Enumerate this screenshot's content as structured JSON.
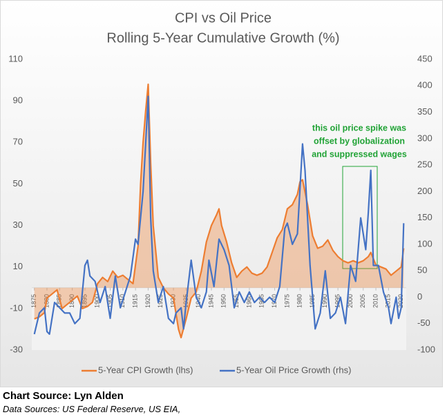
{
  "chart_data": {
    "type": "line",
    "title": "CPI vs Oil Price",
    "subtitle": "Rolling 5-Year Cumulative Growth (%)",
    "annotation": [
      "this oil price spike was",
      "offset by globalization",
      "and suppressed wages"
    ],
    "xlim": [
      1874,
      2022
    ],
    "xticks": [
      1875,
      1880,
      1885,
      1890,
      1895,
      1900,
      1905,
      1910,
      1915,
      1920,
      1925,
      1930,
      1935,
      1940,
      1945,
      1950,
      1955,
      1960,
      1965,
      1970,
      1975,
      1980,
      1985,
      1990,
      1995,
      2000,
      2005,
      2010,
      2015,
      2020
    ],
    "ylim": [
      -30,
      110
    ],
    "yticks": [
      110,
      90,
      70,
      50,
      30,
      10,
      -10,
      -30
    ],
    "y2lim": [
      -100,
      450
    ],
    "y2ticks": [
      450,
      400,
      350,
      300,
      250,
      200,
      150,
      100,
      50,
      0,
      -50,
      -100
    ],
    "series": [
      {
        "name": "5-Year CPI Growth (lhs)",
        "color": "#ED7D31",
        "axis": "y",
        "area": true,
        "x": [
          1875,
          1877,
          1879,
          1880,
          1882,
          1884,
          1886,
          1888,
          1890,
          1892,
          1894,
          1896,
          1898,
          1900,
          1902,
          1904,
          1906,
          1908,
          1910,
          1912,
          1914,
          1916,
          1917,
          1918,
          1919,
          1920,
          1921,
          1922,
          1924,
          1926,
          1928,
          1930,
          1932,
          1933,
          1935,
          1937,
          1939,
          1941,
          1943,
          1945,
          1947,
          1948,
          1949,
          1951,
          1953,
          1955,
          1957,
          1959,
          1961,
          1963,
          1965,
          1967,
          1969,
          1971,
          1973,
          1975,
          1977,
          1979,
          1980,
          1981,
          1983,
          1985,
          1987,
          1989,
          1991,
          1993,
          1995,
          1997,
          1999,
          2001,
          2003,
          2005,
          2007,
          2008,
          2010,
          2012,
          2014,
          2016,
          2018,
          2020,
          2021
        ],
        "values": [
          -15,
          -14,
          -12,
          -5,
          -3,
          -1,
          -10,
          -8,
          -6,
          -4,
          -10,
          -9,
          -7,
          2,
          5,
          3,
          8,
          5,
          6,
          4,
          2,
          20,
          50,
          70,
          85,
          98,
          60,
          30,
          5,
          0,
          -3,
          -5,
          -20,
          -24,
          -15,
          -5,
          -2,
          8,
          22,
          30,
          35,
          38,
          30,
          22,
          12,
          5,
          8,
          10,
          7,
          6,
          7,
          10,
          17,
          24,
          28,
          38,
          40,
          45,
          51,
          52,
          40,
          25,
          19,
          20,
          23,
          18,
          15,
          13,
          12,
          13,
          12,
          13,
          15,
          17,
          11,
          10,
          9,
          6,
          8,
          10,
          19
        ]
      },
      {
        "name": "5-Year Oil Price Growth (rhs)",
        "color": "#4472C4",
        "axis": "y2",
        "x": [
          1875,
          1877,
          1879,
          1880,
          1881,
          1883,
          1885,
          1887,
          1889,
          1891,
          1893,
          1895,
          1896,
          1897,
          1899,
          1901,
          1903,
          1905,
          1907,
          1909,
          1911,
          1913,
          1915,
          1916,
          1918,
          1920,
          1921,
          1922,
          1924,
          1926,
          1928,
          1930,
          1931,
          1933,
          1934,
          1935,
          1937,
          1939,
          1941,
          1943,
          1944,
          1946,
          1948,
          1950,
          1952,
          1954,
          1956,
          1958,
          1960,
          1962,
          1964,
          1966,
          1968,
          1970,
          1972,
          1974,
          1975,
          1977,
          1979,
          1981,
          1982,
          1984,
          1986,
          1988,
          1990,
          1992,
          1994,
          1996,
          1998,
          2000,
          2002,
          2004,
          2006,
          2007,
          2008,
          2009,
          2011,
          2013,
          2015,
          2016,
          2018,
          2019,
          2020,
          2021
        ],
        "values": [
          -70,
          -30,
          -20,
          -65,
          -70,
          -10,
          -20,
          -30,
          -30,
          -50,
          -40,
          60,
          70,
          40,
          30,
          -10,
          20,
          -40,
          40,
          -20,
          10,
          40,
          110,
          100,
          200,
          380,
          150,
          50,
          -10,
          20,
          -40,
          -50,
          -30,
          -20,
          -60,
          -10,
          70,
          0,
          -20,
          10,
          70,
          20,
          110,
          90,
          60,
          -20,
          10,
          -10,
          10,
          -10,
          0,
          -10,
          0,
          -10,
          20,
          130,
          140,
          100,
          120,
          290,
          240,
          60,
          -60,
          -30,
          50,
          -40,
          -30,
          0,
          -50,
          60,
          30,
          150,
          90,
          160,
          240,
          60,
          60,
          10,
          -20,
          -50,
          0,
          -40,
          -20,
          140
        ]
      }
    ]
  },
  "footer": {
    "source": "Chart Source: Lyn Alden",
    "data_sources": "Data Sources: US Federal Reserve, US EIA,"
  }
}
